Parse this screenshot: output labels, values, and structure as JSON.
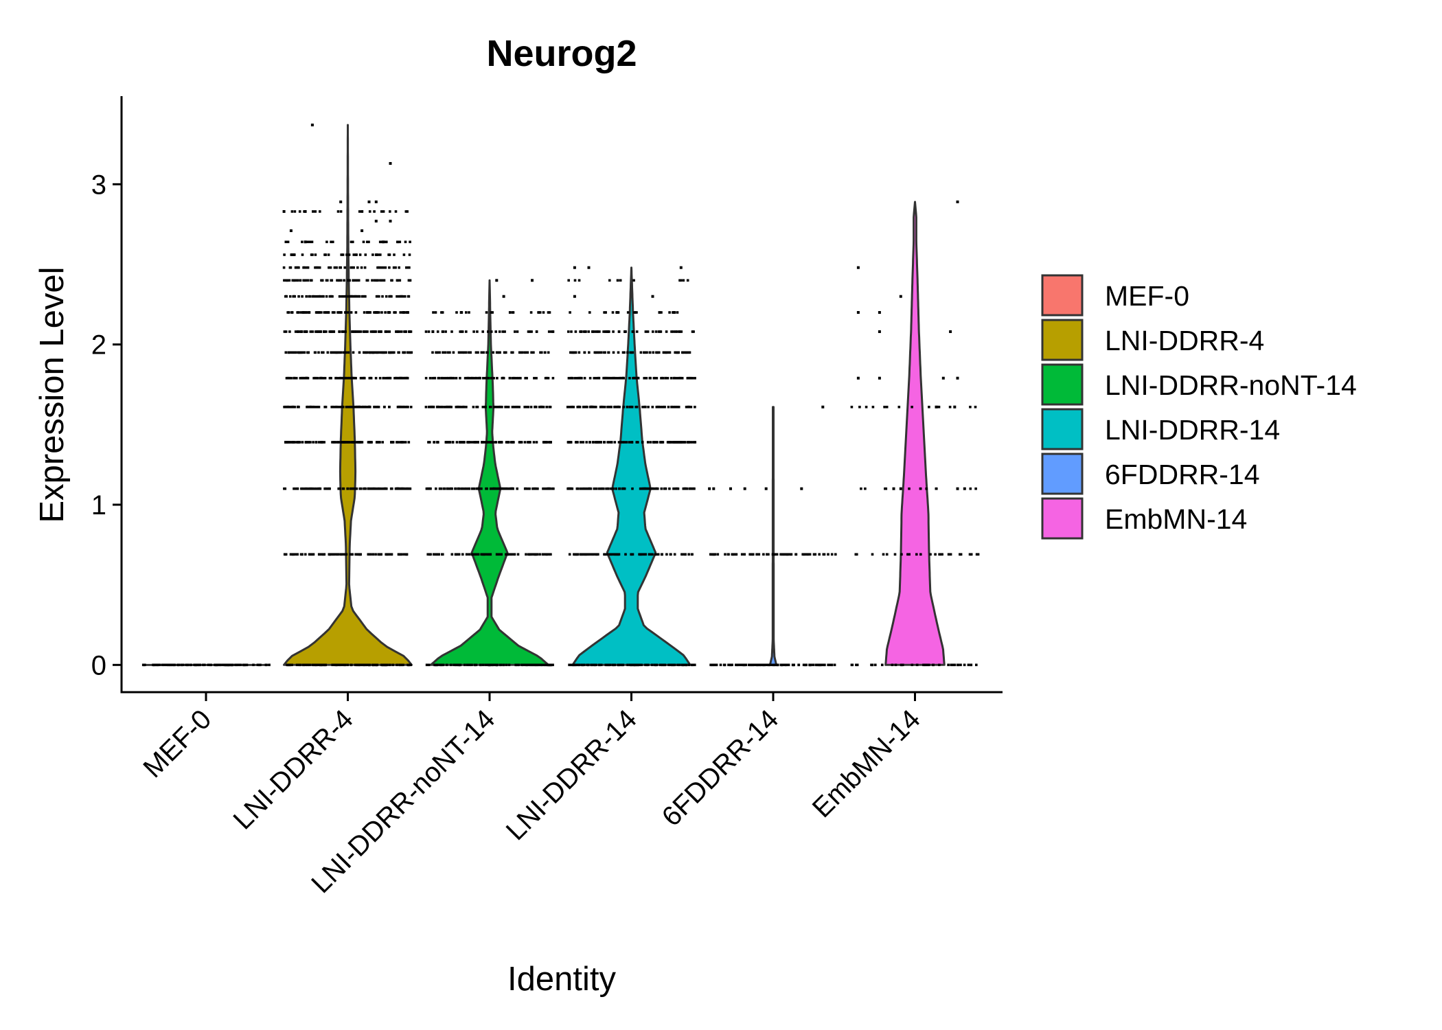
{
  "chart_data": {
    "type": "violin",
    "title": "Neurog2",
    "xlabel": "Identity",
    "ylabel": "Expression Level",
    "ylim": [
      -0.17,
      3.55
    ],
    "yticks": [
      0,
      1,
      2,
      3
    ],
    "categories": [
      "MEF-0",
      "LNI-DDRR-4",
      "LNI-DDRR-noNT-14",
      "LNI-DDRR-14",
      "6FDDRR-14",
      "EmbMN-14"
    ],
    "colors": [
      "#F8766D",
      "#B79F00",
      "#00BA38",
      "#00BFC4",
      "#619CFF",
      "#F564E3"
    ],
    "legend_position": "right",
    "series": [
      {
        "name": "MEF-0",
        "max": 0,
        "density": [
          [
            0,
            1.0
          ]
        ],
        "jitter_levels": [
          [
            0,
            1.0
          ]
        ],
        "outliers": []
      },
      {
        "name": "LNI-DDRR-4",
        "max": 3.37,
        "density": [
          [
            0,
            1.0
          ],
          [
            0.05,
            0.9
          ],
          [
            0.12,
            0.58
          ],
          [
            0.22,
            0.3
          ],
          [
            0.35,
            0.06
          ],
          [
            0.5,
            0.02
          ],
          [
            0.75,
            0.03
          ],
          [
            0.9,
            0.05
          ],
          [
            1.05,
            0.11
          ],
          [
            1.2,
            0.12
          ],
          [
            1.4,
            0.11
          ],
          [
            1.6,
            0.09
          ],
          [
            1.8,
            0.06
          ],
          [
            2.0,
            0.04
          ],
          [
            2.2,
            0.025
          ],
          [
            2.4,
            0.015
          ],
          [
            2.6,
            0.008
          ],
          [
            2.9,
            0.004
          ],
          [
            3.37,
            0.0
          ]
        ],
        "jitter_levels": [
          [
            0,
            1.0
          ],
          [
            0.69,
            0.9
          ],
          [
            1.1,
            1.0
          ],
          [
            1.39,
            1.0
          ],
          [
            1.61,
            1.0
          ],
          [
            1.79,
            1.0
          ],
          [
            1.95,
            1.0
          ],
          [
            2.08,
            0.9
          ],
          [
            2.2,
            0.8
          ],
          [
            2.3,
            0.8
          ],
          [
            2.4,
            0.7
          ],
          [
            2.48,
            0.6
          ],
          [
            2.56,
            0.5
          ],
          [
            2.64,
            0.35
          ],
          [
            2.83,
            0.3
          ]
        ],
        "outliers": [
          [
            -0.25,
            3.37
          ],
          [
            0.3,
            3.13
          ],
          [
            -0.05,
            2.89
          ],
          [
            0.15,
            2.89
          ],
          [
            0.2,
            2.89
          ],
          [
            0.3,
            2.77
          ],
          [
            0.2,
            2.77
          ],
          [
            -0.4,
            2.71
          ],
          [
            0.1,
            2.71
          ],
          [
            -0.3,
            2.83
          ],
          [
            -0.45,
            2.83
          ],
          [
            0.25,
            2.64
          ],
          [
            -0.3,
            2.64
          ]
        ]
      },
      {
        "name": "LNI-DDRR-noNT-14",
        "max": 2.4,
        "density": [
          [
            0,
            0.92
          ],
          [
            0.05,
            0.78
          ],
          [
            0.12,
            0.45
          ],
          [
            0.22,
            0.15
          ],
          [
            0.3,
            0.03
          ],
          [
            0.42,
            0.03
          ],
          [
            0.55,
            0.14
          ],
          [
            0.7,
            0.28
          ],
          [
            0.85,
            0.12
          ],
          [
            0.95,
            0.09
          ],
          [
            1.1,
            0.17
          ],
          [
            1.25,
            0.09
          ],
          [
            1.35,
            0.06
          ],
          [
            1.45,
            0.04
          ],
          [
            1.6,
            0.06
          ],
          [
            1.75,
            0.05
          ],
          [
            2.0,
            0.02
          ],
          [
            2.4,
            0.0
          ]
        ],
        "jitter_levels": [
          [
            0,
            1.0
          ],
          [
            0.69,
            0.85
          ],
          [
            1.1,
            1.0
          ],
          [
            1.39,
            1.0
          ],
          [
            1.61,
            0.85
          ],
          [
            1.79,
            0.8
          ],
          [
            1.95,
            0.6
          ],
          [
            2.08,
            0.45
          ],
          [
            2.2,
            0.3
          ]
        ],
        "outliers": [
          [
            -0.2,
            2.2
          ],
          [
            -0.4,
            2.08
          ],
          [
            0.05,
            2.4
          ],
          [
            0.3,
            2.4
          ],
          [
            0.1,
            2.3
          ]
        ]
      },
      {
        "name": "LNI-DDRR-14",
        "max": 2.48,
        "density": [
          [
            0,
            0.92
          ],
          [
            0.06,
            0.82
          ],
          [
            0.14,
            0.55
          ],
          [
            0.24,
            0.2
          ],
          [
            0.35,
            0.1
          ],
          [
            0.45,
            0.1
          ],
          [
            0.55,
            0.22
          ],
          [
            0.7,
            0.38
          ],
          [
            0.85,
            0.22
          ],
          [
            0.95,
            0.2
          ],
          [
            1.1,
            0.3
          ],
          [
            1.25,
            0.22
          ],
          [
            1.4,
            0.17
          ],
          [
            1.6,
            0.13
          ],
          [
            1.8,
            0.08
          ],
          [
            2.0,
            0.05
          ],
          [
            2.2,
            0.025
          ],
          [
            2.48,
            0.0
          ]
        ],
        "jitter_levels": [
          [
            0,
            1.0
          ],
          [
            0.69,
            0.85
          ],
          [
            1.1,
            1.0
          ],
          [
            1.39,
            1.0
          ],
          [
            1.61,
            0.9
          ],
          [
            1.79,
            0.9
          ],
          [
            1.95,
            0.8
          ],
          [
            2.08,
            0.6
          ],
          [
            2.2,
            0.3
          ],
          [
            2.4,
            0.2
          ]
        ],
        "outliers": [
          [
            -0.4,
            2.48
          ],
          [
            -0.3,
            2.48
          ],
          [
            0.35,
            2.48
          ],
          [
            -0.4,
            2.3
          ],
          [
            -0.1,
            2.2
          ],
          [
            0.15,
            2.3
          ],
          [
            0.3,
            2.2
          ]
        ]
      },
      {
        "name": "6FDDRR-14",
        "max": 1.61,
        "density": [
          [
            0,
            0.05
          ],
          [
            0.05,
            0.02
          ],
          [
            0.15,
            0.008
          ],
          [
            1.61,
            0.005
          ]
        ],
        "jitter_levels": [
          [
            0,
            1.0
          ],
          [
            0.69,
            0.8
          ]
        ],
        "outliers": [
          [
            -0.3,
            1.1
          ],
          [
            -0.2,
            1.1
          ],
          [
            0.2,
            1.1
          ],
          [
            0.35,
            1.61
          ],
          [
            -0.45,
            1.1
          ],
          [
            -0.42,
            1.1
          ],
          [
            -0.05,
            1.1
          ]
        ]
      },
      {
        "name": "EmbMN-14",
        "max": 2.89,
        "density": [
          [
            0,
            0.46
          ],
          [
            0.1,
            0.44
          ],
          [
            0.25,
            0.35
          ],
          [
            0.45,
            0.24
          ],
          [
            0.7,
            0.22
          ],
          [
            0.95,
            0.21
          ],
          [
            1.2,
            0.17
          ],
          [
            1.5,
            0.13
          ],
          [
            1.8,
            0.09
          ],
          [
            2.1,
            0.06
          ],
          [
            2.4,
            0.04
          ],
          [
            2.65,
            0.02
          ],
          [
            2.8,
            0.02
          ],
          [
            2.89,
            0.0
          ]
        ],
        "jitter_levels": [
          [
            0,
            0.45
          ],
          [
            0.69,
            0.35
          ],
          [
            1.1,
            0.2
          ],
          [
            1.61,
            0.2
          ]
        ],
        "outliers": [
          [
            -0.4,
            2.48
          ],
          [
            -0.4,
            2.2
          ],
          [
            -0.25,
            2.2
          ],
          [
            -0.25,
            2.08
          ],
          [
            -0.1,
            2.3
          ],
          [
            0.25,
            2.08
          ],
          [
            0.3,
            2.89
          ],
          [
            -0.4,
            1.79
          ],
          [
            -0.25,
            1.79
          ],
          [
            0.2,
            1.79
          ],
          [
            0.3,
            1.79
          ],
          [
            0.15,
            1.61
          ],
          [
            0.28,
            1.61
          ],
          [
            -0.15,
            1.1
          ],
          [
            -0.1,
            1.1
          ],
          [
            0.3,
            1.1
          ],
          [
            0.35,
            1.1
          ]
        ]
      }
    ]
  }
}
